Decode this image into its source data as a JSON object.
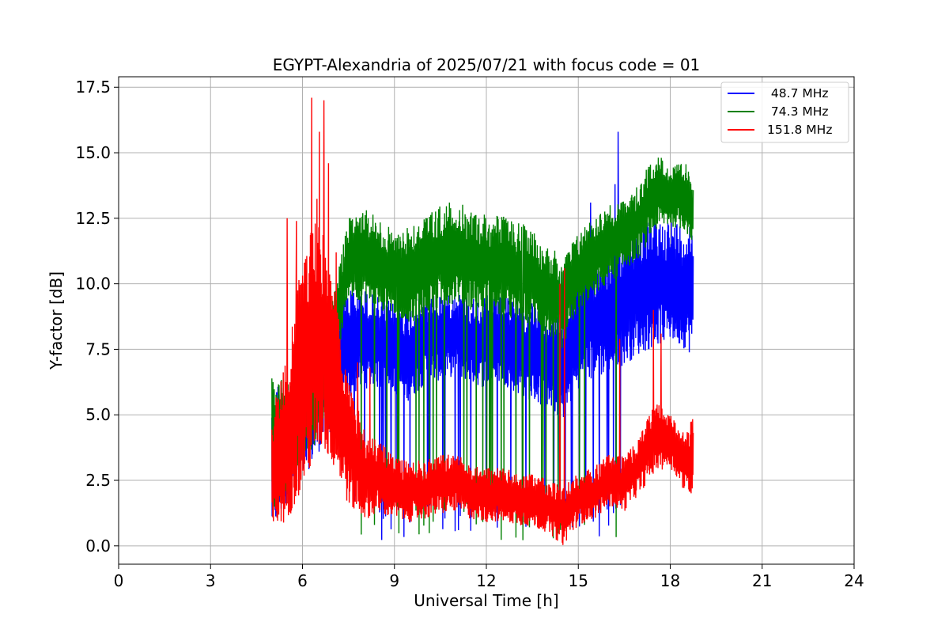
{
  "chart_data": {
    "type": "line",
    "title": "EGYPT-Alexandria of 2025/07/21 with focus code = 01",
    "xlabel": "Universal Time [h]",
    "ylabel": "Y-factor [dB]",
    "xlim": [
      0,
      24
    ],
    "ylim": [
      -0.7,
      17.9
    ],
    "xticks": [
      0,
      3,
      6,
      9,
      12,
      15,
      18,
      21,
      24
    ],
    "xtick_labels": [
      "0",
      "3",
      "6",
      "9",
      "12",
      "15",
      "18",
      "21",
      "24"
    ],
    "yticks": [
      0.0,
      2.5,
      5.0,
      7.5,
      10.0,
      12.5,
      15.0,
      17.5
    ],
    "ytick_labels": [
      "0.0",
      "2.5",
      "5.0",
      "7.5",
      "10.0",
      "12.5",
      "15.0",
      "17.5"
    ],
    "grid": true,
    "legend_position": "top-right",
    "series": [
      {
        "name": " 48.7 MHz",
        "color": "#0000ff",
        "x": [
          5.0,
          5.5,
          6.0,
          6.5,
          7.0,
          7.5,
          8.0,
          8.5,
          9.0,
          9.5,
          10.0,
          10.5,
          11.0,
          11.5,
          12.0,
          12.5,
          13.0,
          13.5,
          14.0,
          14.5,
          15.0,
          15.5,
          16.0,
          16.5,
          17.0,
          17.5,
          18.0,
          18.5,
          18.75
        ],
        "low": [
          0.5,
          1.5,
          2.5,
          3.5,
          4.5,
          5.5,
          6.0,
          6.0,
          5.8,
          5.5,
          6.2,
          6.3,
          6.5,
          6.2,
          6.0,
          6.2,
          5.8,
          5.5,
          5.2,
          4.8,
          6.0,
          6.3,
          6.6,
          6.9,
          7.3,
          7.6,
          7.8,
          7.5,
          7.2
        ],
        "high": [
          6.2,
          6.4,
          7.0,
          8.0,
          9.0,
          10.0,
          9.8,
          9.5,
          9.3,
          9.2,
          9.6,
          9.7,
          9.8,
          9.5,
          9.6,
          9.5,
          9.4,
          9.3,
          9.0,
          8.8,
          10.5,
          11.0,
          11.5,
          12.0,
          12.3,
          12.5,
          12.5,
          12.3,
          12.5
        ],
        "spikes": [
          [
            16.3,
            15.8
          ],
          [
            16.2,
            13.8
          ],
          [
            15.4,
            13.1
          ],
          [
            17.2,
            14.0
          ],
          [
            6.5,
            6.6
          ]
        ]
      },
      {
        "name": " 74.3 MHz",
        "color": "#008000",
        "x": [
          5.0,
          5.5,
          6.0,
          6.5,
          7.0,
          7.5,
          8.0,
          8.5,
          9.0,
          9.5,
          10.0,
          10.5,
          11.0,
          11.5,
          12.0,
          12.5,
          13.0,
          13.5,
          14.0,
          14.5,
          15.0,
          15.5,
          16.0,
          16.5,
          17.0,
          17.5,
          18.0,
          18.5,
          18.75
        ],
        "low": [
          1.0,
          2.0,
          3.0,
          4.0,
          6.0,
          9.5,
          9.3,
          9.0,
          8.8,
          8.5,
          8.8,
          9.0,
          9.3,
          9.0,
          9.0,
          8.7,
          8.5,
          8.5,
          8.0,
          7.5,
          9.0,
          9.5,
          10.0,
          10.5,
          11.0,
          12.0,
          12.2,
          12.0,
          11.5
        ],
        "high": [
          6.4,
          6.3,
          7.0,
          8.5,
          9.5,
          12.5,
          13.0,
          12.5,
          12.0,
          12.3,
          12.6,
          13.0,
          13.2,
          12.8,
          12.7,
          12.6,
          12.4,
          12.1,
          11.5,
          11.0,
          12.0,
          12.6,
          13.0,
          13.2,
          13.8,
          15.1,
          14.5,
          14.6,
          14.0
        ],
        "spikes": []
      },
      {
        "name": "151.8 MHz",
        "color": "#ff0000",
        "x": [
          5.0,
          5.5,
          6.0,
          6.5,
          7.0,
          7.5,
          8.0,
          8.5,
          9.0,
          9.5,
          10.0,
          10.5,
          11.0,
          11.5,
          12.0,
          12.5,
          13.0,
          13.5,
          14.0,
          14.5,
          15.0,
          15.5,
          16.0,
          16.5,
          17.0,
          17.5,
          18.0,
          18.5,
          18.75
        ],
        "low": [
          0.3,
          1.0,
          2.0,
          3.5,
          3.0,
          1.5,
          1.0,
          1.2,
          1.0,
          0.9,
          1.0,
          1.2,
          1.3,
          1.0,
          0.9,
          0.9,
          0.8,
          0.7,
          0.5,
          0.0,
          0.8,
          1.0,
          1.5,
          1.3,
          2.0,
          2.8,
          3.0,
          2.0,
          1.8
        ],
        "high": [
          5.0,
          7.5,
          11.0,
          13.5,
          10.0,
          6.5,
          4.5,
          4.0,
          3.5,
          3.2,
          3.3,
          3.5,
          3.5,
          3.2,
          3.0,
          3.0,
          2.8,
          2.8,
          2.5,
          2.3,
          2.8,
          3.0,
          3.5,
          3.5,
          4.2,
          5.5,
          5.0,
          4.2,
          5.0
        ],
        "spikes": [
          [
            6.3,
            17.1
          ],
          [
            6.7,
            17.0
          ],
          [
            6.55,
            15.8
          ],
          [
            6.85,
            14.6
          ],
          [
            5.5,
            12.5
          ],
          [
            5.8,
            12.4
          ],
          [
            7.1,
            11.2
          ],
          [
            14.55,
            10.6
          ],
          [
            14.4,
            10.0
          ],
          [
            17.45,
            9.0
          ],
          [
            17.7,
            8.1
          ],
          [
            16.35,
            7.9
          ],
          [
            7.8,
            7.0
          ],
          [
            8.2,
            6.8
          ]
        ]
      }
    ]
  }
}
